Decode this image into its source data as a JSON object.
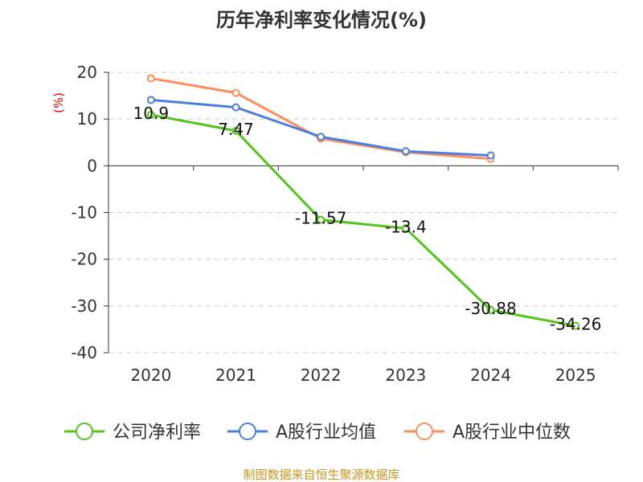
{
  "chart_data": {
    "type": "line",
    "title": "历年净利率变化情况(%)",
    "ylabel": "(%)",
    "categories": [
      "2020",
      "2021",
      "2022",
      "2023",
      "2024",
      "2025"
    ],
    "ylim": [
      -40,
      20
    ],
    "yticks": [
      20,
      10,
      0,
      -10,
      -20,
      -30,
      -40
    ],
    "grid": true,
    "legend_position": "bottom",
    "series": [
      {
        "name": "公司净利率",
        "color": "#52c41a",
        "values": [
          10.9,
          7.47,
          -11.57,
          -13.4,
          -30.88,
          -34.26
        ],
        "labels": [
          "10.9",
          "7.47",
          "-11.57",
          "-13.4",
          "-30.88",
          "-34.26"
        ]
      },
      {
        "name": "A股行业均值",
        "color": "#4a7fe0",
        "values": [
          14.1,
          12.5,
          6.2,
          3.1,
          2.2,
          null
        ]
      },
      {
        "name": "A股行业中位数",
        "color": "#ff8c5a",
        "values": [
          18.7,
          15.6,
          5.8,
          2.9,
          1.5,
          null
        ]
      }
    ]
  },
  "footer": {
    "source": "制图数据来自恒生聚源数据库"
  }
}
